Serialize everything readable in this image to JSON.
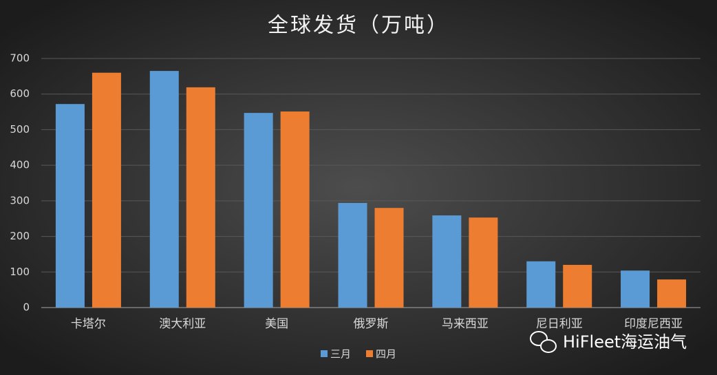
{
  "chart_data": {
    "type": "bar",
    "title": "全球发货（万吨）",
    "categories": [
      "卡塔尔",
      "澳大利亚",
      "美国",
      "俄罗斯",
      "马来西亚",
      "尼日利亚",
      "印度尼西亚"
    ],
    "series": [
      {
        "name": "三月",
        "color": "#5b9bd5",
        "values": [
          572,
          665,
          547,
          294,
          259,
          130,
          104
        ]
      },
      {
        "name": "四月",
        "color": "#ed7d31",
        "values": [
          660,
          619,
          551,
          280,
          253,
          120,
          79
        ]
      }
    ],
    "ylim": [
      0,
      700
    ],
    "yticks": [
      0,
      100,
      200,
      300,
      400,
      500,
      600,
      700
    ],
    "grid": true,
    "legend": "bottom",
    "watermark": "HiFleet海运油气"
  }
}
